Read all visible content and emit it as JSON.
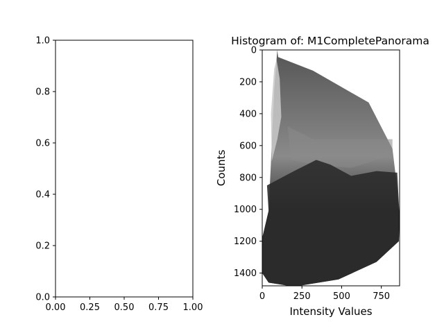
{
  "chart_data": [
    {
      "type": "empty",
      "xlim": [
        0.0,
        1.0
      ],
      "ylim": [
        0.0,
        1.0
      ],
      "x_ticks": [
        "0.00",
        "0.25",
        "0.50",
        "0.75",
        "1.00"
      ],
      "y_ticks": [
        "0.0",
        "0.2",
        "0.4",
        "0.6",
        "0.8",
        "1.0"
      ],
      "title": "",
      "xlabel": "",
      "ylabel": ""
    },
    {
      "type": "image",
      "title": "Histogram of: M1CompletePanorama",
      "xlabel": "Intensity Values",
      "ylabel": "Counts",
      "xlim": [
        0,
        865
      ],
      "ylim": [
        1480,
        0
      ],
      "x_ticks": [
        0,
        250,
        500,
        750
      ],
      "y_ticks": [
        0,
        200,
        400,
        600,
        800,
        1000,
        1200,
        1400
      ],
      "outline": [
        [
          95,
          0
        ],
        [
          100,
          45
        ],
        [
          320,
          130
        ],
        [
          670,
          330
        ],
        [
          820,
          620
        ],
        [
          850,
          870
        ],
        [
          865,
          1050
        ],
        [
          860,
          1200
        ],
        [
          720,
          1330
        ],
        [
          480,
          1440
        ],
        [
          200,
          1485
        ],
        [
          40,
          1460
        ],
        [
          0,
          1400
        ],
        [
          0,
          1180
        ],
        [
          40,
          1010
        ],
        [
          55,
          700
        ],
        [
          75,
          250
        ]
      ],
      "colors": {
        "dark": "#2b2b2b",
        "mid": "#555555",
        "light": "#8a8a8a",
        "pale": "#c9c9c9"
      }
    }
  ]
}
